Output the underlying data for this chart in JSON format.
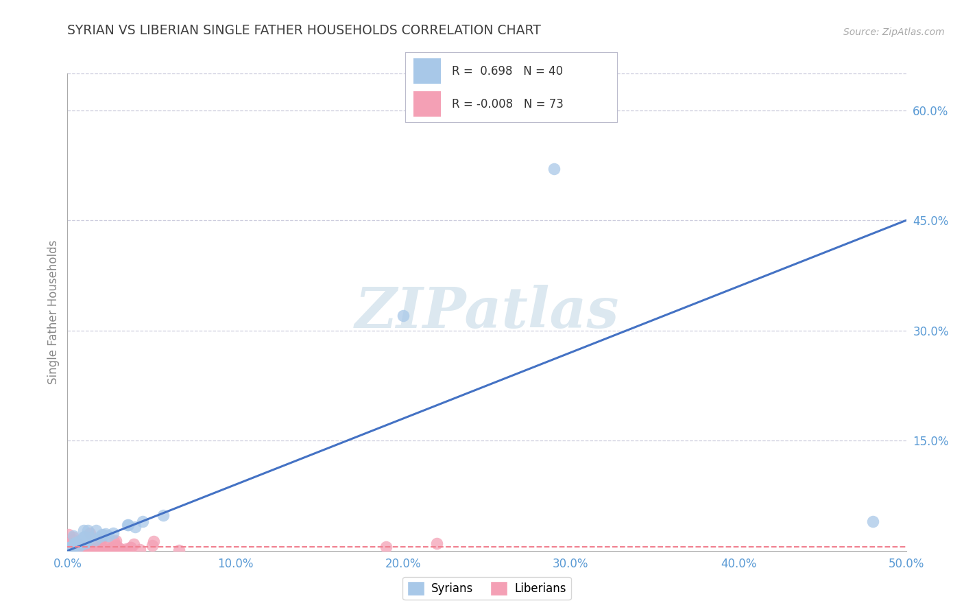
{
  "title": "SYRIAN VS LIBERIAN SINGLE FATHER HOUSEHOLDS CORRELATION CHART",
  "source_text": "Source: ZipAtlas.com",
  "ylabel": "Single Father Households",
  "xlim": [
    0.0,
    0.5
  ],
  "ylim": [
    0.0,
    0.65
  ],
  "xtick_labels": [
    "0.0%",
    "10.0%",
    "20.0%",
    "30.0%",
    "40.0%",
    "50.0%"
  ],
  "xtick_values": [
    0.0,
    0.1,
    0.2,
    0.3,
    0.4,
    0.5
  ],
  "ytick_labels": [
    "15.0%",
    "30.0%",
    "45.0%",
    "60.0%"
  ],
  "ytick_values": [
    0.15,
    0.3,
    0.45,
    0.6
  ],
  "legend_R_syrian": " 0.698",
  "legend_N_syrian": "40",
  "legend_R_liberian": "-0.008",
  "legend_N_liberian": "73",
  "syrian_color": "#a8c8e8",
  "liberian_color": "#f4a0b5",
  "syrian_line_color": "#4472C4",
  "liberian_line_color": "#f08090",
  "background_color": "#ffffff",
  "grid_color": "#ccccdd",
  "title_color": "#404040",
  "axis_label_color": "#5b9bd5",
  "watermark_color": "#dce8f0",
  "syrian_line_x": [
    0.0,
    0.5
  ],
  "syrian_line_y": [
    0.0,
    0.45
  ],
  "liberian_line_x": [
    0.0,
    0.5
  ],
  "liberian_line_y": [
    0.005,
    0.005
  ],
  "syrian_outlier1": [
    0.29,
    0.52
  ],
  "syrian_outlier2": [
    0.48,
    0.04
  ],
  "syrian_mid": [
    0.2,
    0.32
  ]
}
